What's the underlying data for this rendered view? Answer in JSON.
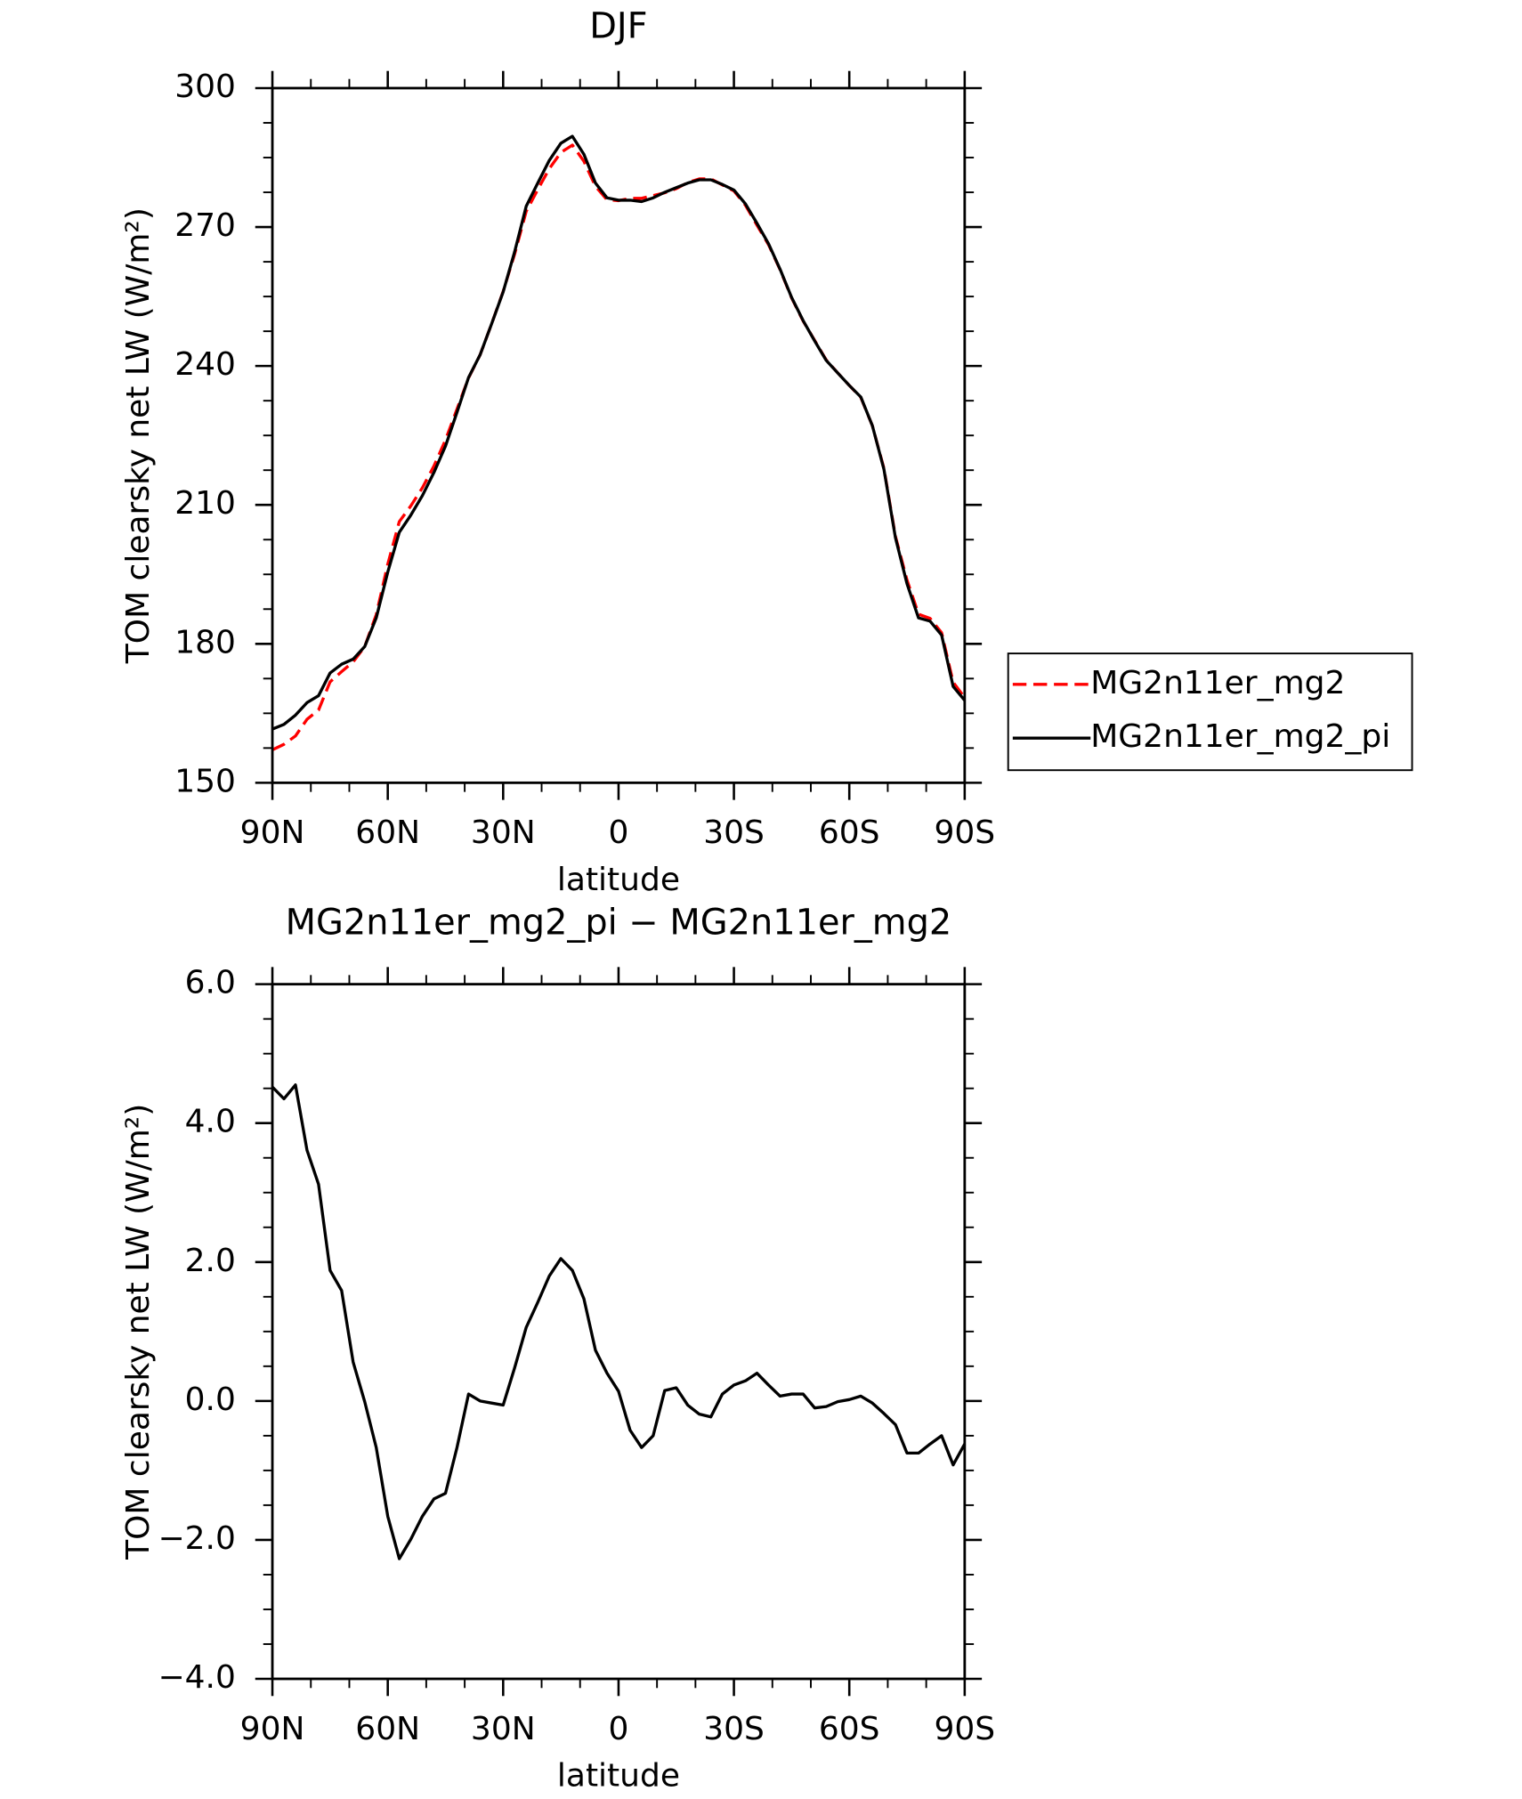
{
  "chart_data": [
    {
      "type": "line",
      "title": "DJF",
      "xlabel": "latitude",
      "ylabel": "TOM clearsky net LW (W/m²)",
      "x": [
        90,
        87,
        84,
        81,
        78,
        75,
        72,
        69,
        66,
        63,
        60,
        57,
        54,
        51,
        48,
        45,
        42,
        39,
        36,
        33,
        30,
        27,
        24,
        21,
        18,
        15,
        12,
        9,
        6,
        3,
        0,
        -3,
        -6,
        -9,
        -12,
        -15,
        -18,
        -21,
        -24,
        -27,
        -30,
        -33,
        -36,
        -39,
        -42,
        -45,
        -48,
        -51,
        -54,
        -57,
        -60,
        -63,
        -66,
        -69,
        -72,
        -75,
        -78,
        -81,
        -84,
        -87,
        -90
      ],
      "xlim": [
        90,
        -90
      ],
      "xticks": [
        {
          "value": 90,
          "label": "90N"
        },
        {
          "value": 60,
          "label": "60N"
        },
        {
          "value": 30,
          "label": "30N"
        },
        0,
        {
          "value": -30,
          "label": "30S"
        },
        {
          "value": -60,
          "label": "60S"
        },
        {
          "value": -90,
          "label": "90S"
        }
      ],
      "ylim": [
        150,
        300
      ],
      "yticks": [
        150,
        180,
        210,
        240,
        270,
        300
      ],
      "legend": "right",
      "series": [
        {
          "name": "MG2n11er_mg2",
          "color": "#ff0000",
          "line_style": "dashed",
          "values": [
            157.1,
            158.3,
            160.1,
            163.7,
            165.7,
            171.8,
            174.0,
            176.1,
            179.4,
            186.3,
            197.2,
            206.4,
            209.8,
            213.7,
            218.4,
            224.0,
            230.7,
            237.4,
            242.4,
            249.1,
            256.1,
            264.2,
            273.4,
            278.1,
            282.6,
            286.1,
            287.7,
            284.2,
            278.8,
            275.9,
            275.7,
            276.2,
            276.2,
            276.8,
            277.4,
            278.3,
            279.6,
            280.4,
            280.4,
            279.1,
            277.8,
            274.7,
            270.4,
            266.2,
            260.8,
            254.7,
            249.7,
            245.5,
            241.3,
            238.5,
            235.8,
            233.2,
            227.1,
            217.9,
            203.2,
            193.8,
            186.4,
            185.5,
            182.4,
            171.7,
            168.4
          ]
        },
        {
          "name": "MG2n11er_mg2_pi",
          "color": "#000000",
          "line_style": "solid",
          "values": [
            161.6,
            162.6,
            164.6,
            167.3,
            168.8,
            173.7,
            175.6,
            176.7,
            179.4,
            185.6,
            195.5,
            204.1,
            207.8,
            212.0,
            217.0,
            222.7,
            230.0,
            237.5,
            242.4,
            249.1,
            256.0,
            264.7,
            274.5,
            279.5,
            284.4,
            288.1,
            289.6,
            285.7,
            279.5,
            276.3,
            275.8,
            275.8,
            275.5,
            276.3,
            277.5,
            278.5,
            279.5,
            280.2,
            280.2,
            279.2,
            278.0,
            275.0,
            270.8,
            266.4,
            260.9,
            254.8,
            249.8,
            245.4,
            241.2,
            238.5,
            235.8,
            233.3,
            227.1,
            217.7,
            202.9,
            193.0,
            185.6,
            184.9,
            181.9,
            170.8,
            167.8
          ]
        }
      ]
    },
    {
      "type": "line",
      "title": "MG2n11er_mg2_pi − MG2n11er_mg2",
      "xlabel": "latitude",
      "ylabel": "TOM clearsky net LW (W/m²)",
      "x": [
        90,
        87,
        84,
        81,
        78,
        75,
        72,
        69,
        66,
        63,
        60,
        57,
        54,
        51,
        48,
        45,
        42,
        39,
        36,
        33,
        30,
        27,
        24,
        21,
        18,
        15,
        12,
        9,
        6,
        3,
        0,
        -3,
        -6,
        -9,
        -12,
        -15,
        -18,
        -21,
        -24,
        -27,
        -30,
        -33,
        -36,
        -39,
        -42,
        -45,
        -48,
        -51,
        -54,
        -57,
        -60,
        -63,
        -66,
        -69,
        -72,
        -75,
        -78,
        -81,
        -84,
        -87,
        -90
      ],
      "xlim": [
        90,
        -90
      ],
      "xticks": [
        {
          "value": 90,
          "label": "90N"
        },
        {
          "value": 60,
          "label": "60N"
        },
        {
          "value": 30,
          "label": "30N"
        },
        0,
        {
          "value": -30,
          "label": "30S"
        },
        {
          "value": -60,
          "label": "60S"
        },
        {
          "value": -90,
          "label": "90S"
        }
      ],
      "ylim": [
        -4,
        6
      ],
      "yticks": [
        {
          "value": -4,
          "label": "−4.0"
        },
        {
          "value": -2,
          "label": "−2.0"
        },
        {
          "value": 0,
          "label": "0.0"
        },
        {
          "value": 2,
          "label": "2.0"
        },
        {
          "value": 4,
          "label": "4.0"
        },
        {
          "value": 6,
          "label": "6.0"
        }
      ],
      "series": [
        {
          "color": "#000000",
          "line_style": "solid",
          "values": [
            4.52,
            4.35,
            4.55,
            3.61,
            3.12,
            1.88,
            1.59,
            0.56,
            -0.01,
            -0.67,
            -1.66,
            -2.27,
            -1.99,
            -1.66,
            -1.41,
            -1.33,
            -0.67,
            0.1,
            0.0,
            -0.03,
            -0.06,
            0.48,
            1.06,
            1.42,
            1.8,
            2.05,
            1.88,
            1.47,
            0.73,
            0.4,
            0.14,
            -0.42,
            -0.67,
            -0.5,
            0.15,
            0.19,
            -0.06,
            -0.19,
            -0.23,
            0.1,
            0.23,
            0.29,
            0.4,
            0.23,
            0.07,
            0.1,
            0.1,
            -0.1,
            -0.08,
            -0.01,
            0.02,
            0.07,
            -0.03,
            -0.18,
            -0.34,
            -0.75,
            -0.75,
            -0.62,
            -0.5,
            -0.92,
            -0.62
          ]
        }
      ]
    }
  ]
}
